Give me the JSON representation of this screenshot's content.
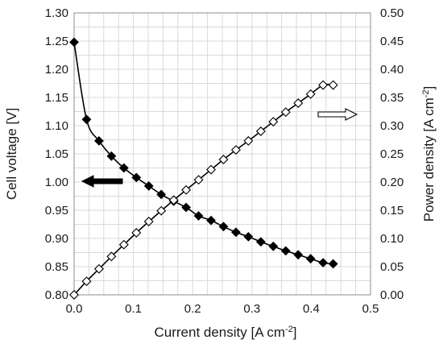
{
  "chart_data": {
    "type": "scatter",
    "title": "",
    "xlabel": "Current density [A cm",
    "xlabel_sup": "-2",
    "xlabel_end": "]",
    "ylabel_left": "Cell voltage [V]",
    "ylabel_right": "Power density [A cm",
    "ylabel_right_sup": "-2",
    "ylabel_right_end": "]",
    "xlim": [
      0.0,
      0.5
    ],
    "ylim_left": [
      0.8,
      1.3
    ],
    "ylim_right": [
      0.0,
      0.5
    ],
    "grid": true,
    "x_tick_labels": [
      "0.0",
      "0.1",
      "0.2",
      "0.3",
      "0.4",
      "0.5"
    ],
    "y_left_tick_labels": [
      "0.80",
      "0.85",
      "0.90",
      "0.95",
      "1.00",
      "1.05",
      "1.10",
      "1.15",
      "1.20",
      "1.25",
      "1.30"
    ],
    "y_right_tick_labels": [
      "0.00",
      "0.05",
      "0.10",
      "0.15",
      "0.20",
      "0.25",
      "0.30",
      "0.35",
      "0.40",
      "0.45",
      "0.50"
    ],
    "series": [
      {
        "axis": "left",
        "marker": "filled-diamond",
        "x": [
          0.0,
          0.021,
          0.042,
          0.063,
          0.084,
          0.105,
          0.126,
          0.147,
          0.168,
          0.189,
          0.21,
          0.231,
          0.252,
          0.273,
          0.294,
          0.315,
          0.336,
          0.357,
          0.378,
          0.399,
          0.42,
          0.437
        ],
        "y": [
          1.248,
          1.111,
          1.073,
          1.046,
          1.025,
          1.008,
          0.993,
          0.978,
          0.966,
          0.955,
          0.94,
          0.932,
          0.921,
          0.911,
          0.903,
          0.894,
          0.886,
          0.878,
          0.871,
          0.864,
          0.857,
          0.855
        ]
      },
      {
        "axis": "right",
        "marker": "open-diamond",
        "x": [
          0.0,
          0.021,
          0.042,
          0.063,
          0.084,
          0.105,
          0.126,
          0.147,
          0.168,
          0.189,
          0.21,
          0.231,
          0.252,
          0.273,
          0.294,
          0.315,
          0.336,
          0.357,
          0.378,
          0.399,
          0.42,
          0.437
        ],
        "y": [
          0.0,
          0.024,
          0.046,
          0.068,
          0.089,
          0.11,
          0.13,
          0.149,
          0.168,
          0.186,
          0.204,
          0.222,
          0.24,
          0.257,
          0.273,
          0.29,
          0.307,
          0.324,
          0.34,
          0.356,
          0.372,
          0.372
        ]
      }
    ],
    "annotations": [
      {
        "type": "arrow",
        "direction": "left",
        "style": "filled",
        "refers_to": "left axis"
      },
      {
        "type": "arrow",
        "direction": "right",
        "style": "open",
        "refers_to": "right axis"
      }
    ]
  }
}
